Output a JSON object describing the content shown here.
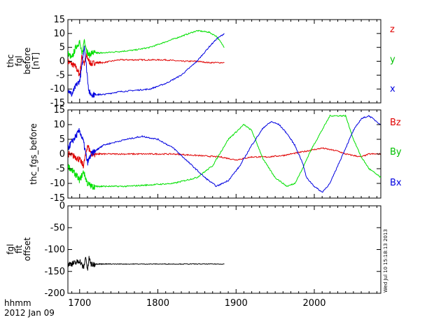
{
  "figure": {
    "x_axis": {
      "ticks": [
        1700,
        1800,
        1900,
        2000
      ],
      "tick_labels": [
        "1700",
        "1800",
        "1900",
        "2000"
      ],
      "range": [
        1685,
        2085
      ],
      "footer_line1": "hhmm",
      "footer_line2": "2012 Jan 09"
    },
    "timestamp": "Wed Jul 10 15:18:13 2013"
  },
  "chart_data": [
    {
      "type": "line",
      "ylabel_lines": [
        "thc",
        "fgl",
        "before",
        "[nT]"
      ],
      "ylim": [
        -15,
        15
      ],
      "yticks": [
        15,
        10,
        5,
        0,
        -5,
        -10,
        -15
      ],
      "series": [
        {
          "name": "z",
          "color": "#e00000",
          "x": [
            1685,
            1690,
            1695,
            1700,
            1703,
            1706,
            1709,
            1712,
            1715,
            1720,
            1730,
            1750,
            1770,
            1790,
            1810,
            1830,
            1850,
            1865,
            1875,
            1885
          ],
          "y": [
            0,
            -1,
            -2,
            -5,
            2,
            -1,
            2,
            0,
            -1,
            -0.5,
            -0.5,
            0.5,
            0.5,
            0.5,
            0.5,
            0,
            0,
            -0.5,
            -0.5,
            -0.5
          ]
        },
        {
          "name": "y",
          "color": "#00e000",
          "x": [
            1685,
            1690,
            1695,
            1700,
            1703,
            1706,
            1709,
            1712,
            1715,
            1720,
            1730,
            1750,
            1770,
            1790,
            1810,
            1830,
            1850,
            1865,
            1875,
            1885
          ],
          "y": [
            3,
            1,
            5,
            7,
            2,
            8,
            4,
            2,
            3,
            3,
            3,
            3.5,
            4,
            5,
            7,
            9,
            11,
            10.5,
            9,
            5
          ]
        },
        {
          "name": "x",
          "color": "#0000e0",
          "x": [
            1685,
            1690,
            1695,
            1700,
            1703,
            1706,
            1709,
            1712,
            1715,
            1720,
            1730,
            1750,
            1770,
            1790,
            1810,
            1830,
            1850,
            1865,
            1875,
            1885
          ],
          "y": [
            -10,
            -12,
            -9,
            -7,
            -2,
            6,
            -3,
            -11,
            -12,
            -12,
            -12,
            -11,
            -10.5,
            -10,
            -8,
            -5,
            0,
            5,
            8,
            10
          ]
        }
      ]
    },
    {
      "type": "line",
      "ylabel": "thc_fgs_before",
      "ylim": [
        -15,
        15
      ],
      "yticks": [
        15,
        10,
        5,
        0,
        -5,
        -10,
        -15
      ],
      "series": [
        {
          "name": "Bz",
          "color": "#e00000",
          "x": [
            1685,
            1695,
            1700,
            1705,
            1710,
            1715,
            1730,
            1760,
            1790,
            1820,
            1850,
            1880,
            1900,
            1920,
            1940,
            1960,
            1980,
            1990,
            2010,
            2030,
            2040,
            2050,
            2060,
            2070,
            2085
          ],
          "y": [
            0,
            -1,
            -2,
            -4,
            3,
            0,
            0,
            0,
            0,
            0,
            -0.5,
            -1,
            -2,
            -1,
            -1,
            -0.5,
            0.5,
            1,
            2,
            1,
            0,
            -0.5,
            -1,
            0,
            0
          ]
        },
        {
          "name": "By",
          "color": "#00e000",
          "x": [
            1685,
            1695,
            1700,
            1705,
            1710,
            1715,
            1730,
            1760,
            1790,
            1820,
            1850,
            1870,
            1890,
            1910,
            1920,
            1935,
            1950,
            1965,
            1975,
            1985,
            1995,
            2020,
            2040,
            2050,
            2060,
            2070,
            2085
          ],
          "y": [
            -4,
            -7,
            -9,
            -6,
            -10,
            -11,
            -11,
            -11,
            -10.5,
            -10,
            -8,
            -4,
            5,
            10,
            8,
            -2,
            -8,
            -11,
            -10,
            -5,
            1,
            13,
            13,
            5,
            -1,
            -5,
            -8
          ]
        },
        {
          "name": "Bx",
          "color": "#0000e0",
          "x": [
            1685,
            1695,
            1700,
            1705,
            1710,
            1715,
            1730,
            1760,
            1780,
            1800,
            1820,
            1840,
            1860,
            1875,
            1890,
            1905,
            1920,
            1935,
            1945,
            1955,
            1965,
            1975,
            1985,
            1990,
            2000,
            2010,
            2020,
            2040,
            2050,
            2060,
            2070,
            2085
          ],
          "y": [
            2,
            6,
            8,
            4,
            -3,
            0,
            3,
            5,
            6,
            5,
            2,
            -3,
            -8,
            -11,
            -9,
            -4,
            3,
            9,
            11,
            10,
            7,
            3,
            -3,
            -8,
            -11,
            -13,
            -10,
            2,
            8,
            12,
            13,
            10
          ]
        }
      ]
    },
    {
      "type": "line",
      "ylabel_lines": [
        "fgl",
        "fit",
        "offset"
      ],
      "ylim": [
        -200,
        0
      ],
      "yticks": [
        0,
        -50,
        -100,
        -150,
        -200
      ],
      "series": [
        {
          "color": "#000000",
          "x": [
            1685,
            1695,
            1700,
            1705,
            1708,
            1710,
            1712,
            1715,
            1720,
            1740,
            1780,
            1820,
            1860,
            1885
          ],
          "y": [
            -133,
            -131,
            -125,
            -143,
            -115,
            -150,
            -120,
            -135,
            -133,
            -133,
            -133,
            -133,
            -133,
            -133
          ]
        }
      ]
    }
  ]
}
